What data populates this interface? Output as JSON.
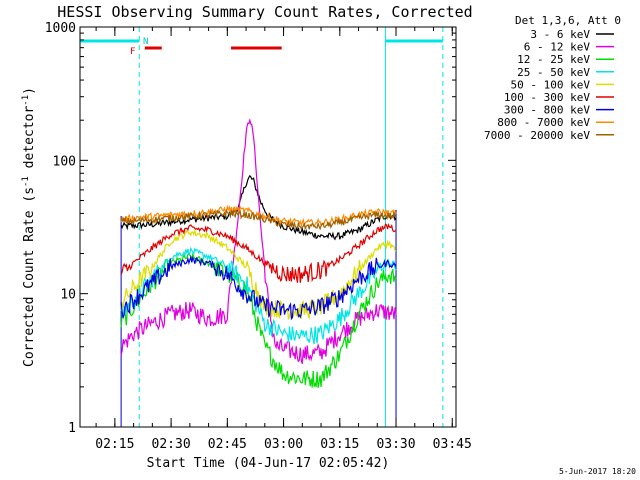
{
  "chart_data": {
    "type": "line",
    "title": "HESSI Observing Summary Count Rates, Corrected",
    "xlabel": "Start Time (04-Jun-17 02:05:42)",
    "ylabel_main": "Corrected Count Rate (s",
    "ylabel_sup1": "-1",
    "ylabel_mid": " detector",
    "ylabel_sup2": "-1",
    "ylabel_end": ")",
    "yscale": "log",
    "ylim": [
      1,
      1000
    ],
    "xlim": [
      "02:05:42",
      "03:46:00"
    ],
    "x_ticks": [
      "02:15",
      "02:30",
      "02:45",
      "03:00",
      "03:15",
      "03:30",
      "03:45"
    ],
    "y_ticks": [
      "1",
      "10",
      "100",
      "1000"
    ],
    "legend_header": "Det 1,3,6, Att 0",
    "legend_placement": "top-right",
    "timestamp": "5-Jun-2017 18:20",
    "flags": {
      "F_label": "F",
      "N_label": "N",
      "night_intervals": [
        [
          "02:05:42",
          "02:21:30"
        ],
        [
          "03:27:10",
          "03:42:30"
        ]
      ],
      "saa_intervals": [
        [
          "02:23:00",
          "02:27:30"
        ],
        [
          "02:46:00",
          "02:59:30"
        ]
      ],
      "night_color": "#00e5e5",
      "saa_color": "#e00000"
    },
    "data_start": "02:16:40",
    "data_end": "03:30:00",
    "series": [
      {
        "name": "3 - 6 keV",
        "color": "#000000",
        "points": [
          [
            "02:16:40",
            32
          ],
          [
            "02:25",
            33
          ],
          [
            "02:35",
            36
          ],
          [
            "02:45",
            38
          ],
          [
            "02:48",
            44
          ],
          [
            "02:50",
            68
          ],
          [
            "02:51",
            75
          ],
          [
            "02:52",
            70
          ],
          [
            "02:54",
            48
          ],
          [
            "02:56",
            38
          ],
          [
            "03:00",
            32
          ],
          [
            "03:05",
            29
          ],
          [
            "03:10",
            27
          ],
          [
            "03:15",
            27
          ],
          [
            "03:20",
            30
          ],
          [
            "03:25",
            36
          ],
          [
            "03:28",
            39
          ],
          [
            "03:30",
            37
          ]
        ]
      },
      {
        "name": "6 - 12 keV",
        "color": "#e000e0",
        "points": [
          [
            "02:16:40",
            4
          ],
          [
            "02:20",
            5
          ],
          [
            "02:25",
            6
          ],
          [
            "02:30",
            7
          ],
          [
            "02:35",
            7.5
          ],
          [
            "02:40",
            6.5
          ],
          [
            "02:45",
            7
          ],
          [
            "02:48",
            40
          ],
          [
            "02:50",
            160
          ],
          [
            "02:51",
            210
          ],
          [
            "02:52",
            150
          ],
          [
            "02:54",
            30
          ],
          [
            "02:56",
            8
          ],
          [
            "02:58",
            4
          ],
          [
            "03:05",
            3.5
          ],
          [
            "03:10",
            3.6
          ],
          [
            "03:15",
            5
          ],
          [
            "03:20",
            6.5
          ],
          [
            "03:25",
            7.5
          ],
          [
            "03:30",
            7
          ]
        ]
      },
      {
        "name": "12 - 25 keV",
        "color": "#00dd00",
        "points": [
          [
            "02:16:40",
            6
          ],
          [
            "02:20",
            8
          ],
          [
            "02:25",
            12
          ],
          [
            "02:30",
            17
          ],
          [
            "02:35",
            19
          ],
          [
            "02:40",
            17
          ],
          [
            "02:45",
            14
          ],
          [
            "02:50",
            11
          ],
          [
            "02:55",
            4
          ],
          [
            "02:58",
            3
          ],
          [
            "03:00",
            2.5
          ],
          [
            "03:05",
            2.3
          ],
          [
            "03:10",
            2.3
          ],
          [
            "03:15",
            3.5
          ],
          [
            "03:20",
            7
          ],
          [
            "03:25",
            12
          ],
          [
            "03:28",
            14
          ],
          [
            "03:30",
            13
          ]
        ]
      },
      {
        "name": "25 - 50 keV",
        "color": "#00e5e5",
        "points": [
          [
            "02:16:40",
            7
          ],
          [
            "02:20",
            9
          ],
          [
            "02:25",
            13
          ],
          [
            "02:30",
            19
          ],
          [
            "02:35",
            21
          ],
          [
            "02:40",
            19
          ],
          [
            "02:45",
            16
          ],
          [
            "02:50",
            12
          ],
          [
            "02:55",
            6
          ],
          [
            "03:00",
            5
          ],
          [
            "03:05",
            4.8
          ],
          [
            "03:10",
            5
          ],
          [
            "03:15",
            6.5
          ],
          [
            "03:20",
            10
          ],
          [
            "03:25",
            15
          ],
          [
            "03:28",
            17
          ],
          [
            "03:30",
            15
          ]
        ]
      },
      {
        "name": "50 - 100 keV",
        "color": "#dddd00",
        "points": [
          [
            "02:16:40",
            8.5
          ],
          [
            "02:20",
            11
          ],
          [
            "02:25",
            16
          ],
          [
            "02:30",
            25
          ],
          [
            "02:35",
            29
          ],
          [
            "02:40",
            27
          ],
          [
            "02:45",
            22
          ],
          [
            "02:50",
            16
          ],
          [
            "02:55",
            8
          ],
          [
            "03:00",
            7.5
          ],
          [
            "03:05",
            7.5
          ],
          [
            "03:10",
            8
          ],
          [
            "03:15",
            10
          ],
          [
            "03:20",
            15
          ],
          [
            "03:25",
            22
          ],
          [
            "03:28",
            24
          ],
          [
            "03:30",
            21
          ]
        ]
      },
      {
        "name": "100 - 300 keV",
        "color": "#e00000",
        "points": [
          [
            "02:16:40",
            14
          ],
          [
            "02:20",
            17
          ],
          [
            "02:25",
            22
          ],
          [
            "02:30",
            28
          ],
          [
            "02:35",
            31
          ],
          [
            "02:40",
            30
          ],
          [
            "02:45",
            27
          ],
          [
            "02:50",
            22
          ],
          [
            "02:55",
            17
          ],
          [
            "03:00",
            14
          ],
          [
            "03:05",
            14
          ],
          [
            "03:10",
            15
          ],
          [
            "03:15",
            18
          ],
          [
            "03:20",
            23
          ],
          [
            "03:25",
            30
          ],
          [
            "03:28",
            32
          ],
          [
            "03:30",
            30
          ]
        ]
      },
      {
        "name": "300 - 800 keV",
        "color": "#0000e0",
        "points": [
          [
            "02:16:40",
            7.5
          ],
          [
            "02:20",
            9
          ],
          [
            "02:25",
            12
          ],
          [
            "02:30",
            16
          ],
          [
            "02:35",
            18
          ],
          [
            "02:40",
            17
          ],
          [
            "02:45",
            14
          ],
          [
            "02:50",
            10
          ],
          [
            "02:55",
            8
          ],
          [
            "03:00",
            7.5
          ],
          [
            "03:05",
            7.5
          ],
          [
            "03:10",
            8
          ],
          [
            "03:15",
            9.5
          ],
          [
            "03:20",
            13
          ],
          [
            "03:25",
            16
          ],
          [
            "03:28",
            17
          ],
          [
            "03:30",
            16
          ]
        ]
      },
      {
        "name": "800 - 7000 keV",
        "color": "#ff8800",
        "points": [
          [
            "02:16:40",
            36
          ],
          [
            "02:20",
            37
          ],
          [
            "02:30",
            39
          ],
          [
            "02:40",
            41
          ],
          [
            "02:45",
            43
          ],
          [
            "02:50",
            42
          ],
          [
            "02:55",
            38
          ],
          [
            "03:00",
            35
          ],
          [
            "03:05",
            34
          ],
          [
            "03:10",
            34
          ],
          [
            "03:15",
            36
          ],
          [
            "03:20",
            39
          ],
          [
            "03:25",
            41
          ],
          [
            "03:30",
            40
          ]
        ]
      },
      {
        "name": "7000 - 20000 keV",
        "color": "#a06000",
        "points": [
          [
            "02:16:40",
            35
          ],
          [
            "02:20",
            35
          ],
          [
            "02:30",
            37
          ],
          [
            "02:40",
            39
          ],
          [
            "02:45",
            40
          ],
          [
            "02:50",
            39
          ],
          [
            "02:55",
            36
          ],
          [
            "03:00",
            33
          ],
          [
            "03:05",
            32
          ],
          [
            "03:10",
            32
          ],
          [
            "03:15",
            34
          ],
          [
            "03:20",
            37
          ],
          [
            "03:25",
            39
          ],
          [
            "03:30",
            38
          ]
        ]
      }
    ]
  }
}
